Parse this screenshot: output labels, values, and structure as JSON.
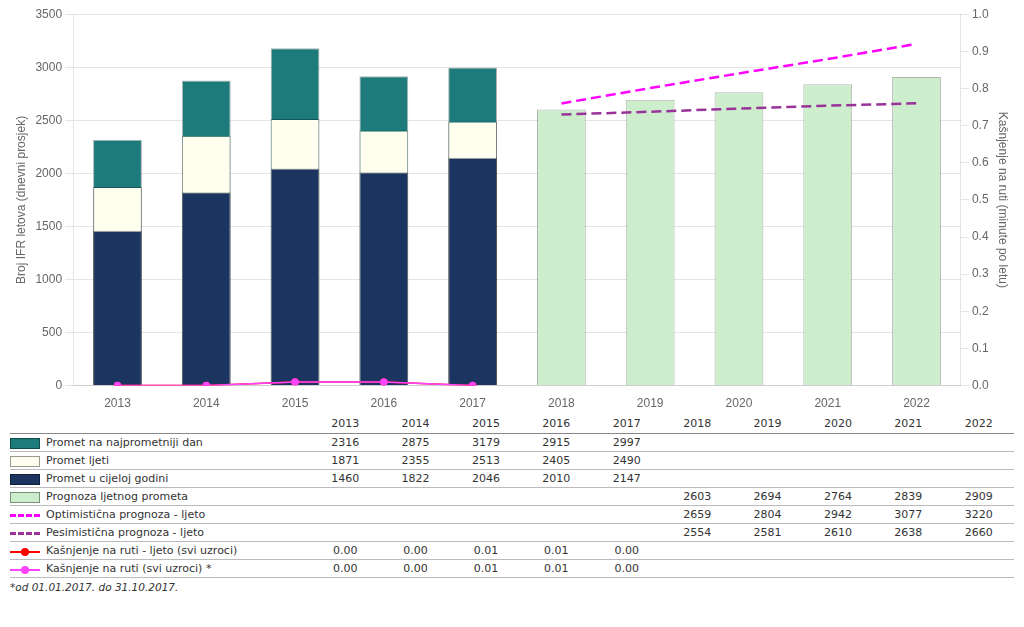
{
  "chart_data": {
    "type": "bar",
    "categories": [
      2013,
      2014,
      2015,
      2016,
      2017,
      2018,
      2019,
      2020,
      2021,
      2022
    ],
    "ylabel": "Broj IFR letova (dnevni prosjek)",
    "y2label": "Kašnjenje na ruti (minute po letu)",
    "ylim": [
      0,
      3500
    ],
    "yticks": [
      0,
      500,
      1000,
      1500,
      2000,
      2500,
      3000,
      3500
    ],
    "y2lim": [
      0,
      1
    ],
    "y2ticks": [
      {
        "value": 0,
        "label": "0.0"
      },
      0.1,
      0.2,
      0.3,
      0.4,
      0.5,
      0.6,
      0.7,
      0.8,
      0.9,
      {
        "value": 1,
        "label": "1.0"
      }
    ],
    "grid": true,
    "series": [
      {
        "name": "Promet na najprometniji dan",
        "type": "bar",
        "color": "#1E7B7B",
        "values": [
          2316,
          2875,
          3179,
          2915,
          2997,
          null,
          null,
          null,
          null,
          null
        ]
      },
      {
        "name": "Promet ljeti",
        "type": "bar",
        "color": "#FFFFF0",
        "values": [
          1871,
          2355,
          2513,
          2405,
          2490,
          null,
          null,
          null,
          null,
          null
        ]
      },
      {
        "name": "Promet u cijeloj godini",
        "type": "bar",
        "color": "#1C3560",
        "values": [
          1460,
          1822,
          2046,
          2010,
          2147,
          null,
          null,
          null,
          null,
          null
        ]
      },
      {
        "name": "Prognoza ljetnog prometa",
        "type": "bar",
        "color": "#CCEECC",
        "values": [
          null,
          null,
          null,
          null,
          null,
          2603,
          2694,
          2764,
          2839,
          2909
        ]
      },
      {
        "name": "Optimistična prognoza - ljeto",
        "type": "line",
        "line_style": "dashed",
        "color": "#FF00FF",
        "values": [
          null,
          null,
          null,
          null,
          null,
          2659,
          2804,
          2942,
          3077,
          3220
        ]
      },
      {
        "name": "Pesimistična prognoza - ljeto",
        "type": "line",
        "line_style": "dashed",
        "color": "#993399",
        "values": [
          null,
          null,
          null,
          null,
          null,
          2554,
          2581,
          2610,
          2638,
          2660
        ]
      },
      {
        "name": "Kašnjenje na ruti - ljeto (svi uzroci)",
        "type": "line",
        "marker": "circle",
        "color": "#FF0000",
        "axis": "y2",
        "values": [
          0,
          0,
          0.01,
          0.01,
          0,
          null,
          null,
          null,
          null,
          null
        ],
        "value_labels": [
          "0.00",
          "0.00",
          "0.01",
          "0.01",
          "0.00",
          null,
          null,
          null,
          null,
          null
        ]
      },
      {
        "name": "Kašnjenje na ruti (svi uzroci) *",
        "type": "line",
        "marker": "circle",
        "color": "#FF44FF",
        "axis": "y2",
        "values": [
          0,
          0,
          0.01,
          0.01,
          0,
          null,
          null,
          null,
          null,
          null
        ],
        "value_labels": [
          "0.00",
          "0.00",
          "0.01",
          "0.01",
          "0.00",
          null,
          null,
          null,
          null,
          null
        ]
      }
    ],
    "annotations": [
      "*od 01.01.2017. do 31.10.2017."
    ]
  }
}
